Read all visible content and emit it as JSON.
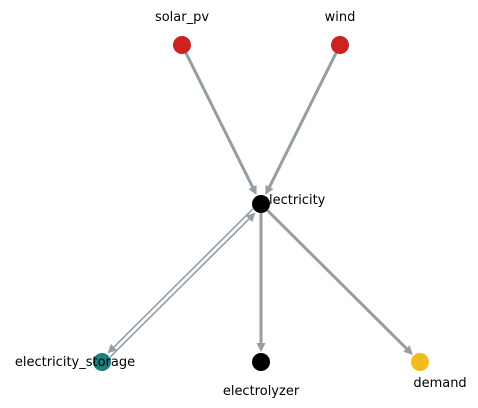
{
  "graph": {
    "nodes": [
      {
        "id": "solar_pv",
        "label": "solar_pv",
        "color": "#cc2222"
      },
      {
        "id": "wind",
        "label": "wind",
        "color": "#cc2222"
      },
      {
        "id": "electricity",
        "label": "electricity",
        "color": "#000000"
      },
      {
        "id": "electricity_storage",
        "label": "electricity_storage",
        "color": "#1a7f7f"
      },
      {
        "id": "electrolyzer",
        "label": "electrolyzer",
        "color": "#000000"
      },
      {
        "id": "demand",
        "label": "demand",
        "color": "#f0bc1e"
      }
    ],
    "edges": [
      {
        "from": "solar_pv",
        "to": "electricity"
      },
      {
        "from": "wind",
        "to": "electricity"
      },
      {
        "from": "electricity",
        "to": "electricity_storage"
      },
      {
        "from": "electricity_storage",
        "to": "electricity"
      },
      {
        "from": "electricity",
        "to": "electrolyzer"
      },
      {
        "from": "electricity",
        "to": "demand"
      }
    ],
    "edge_color": "#959da5"
  }
}
